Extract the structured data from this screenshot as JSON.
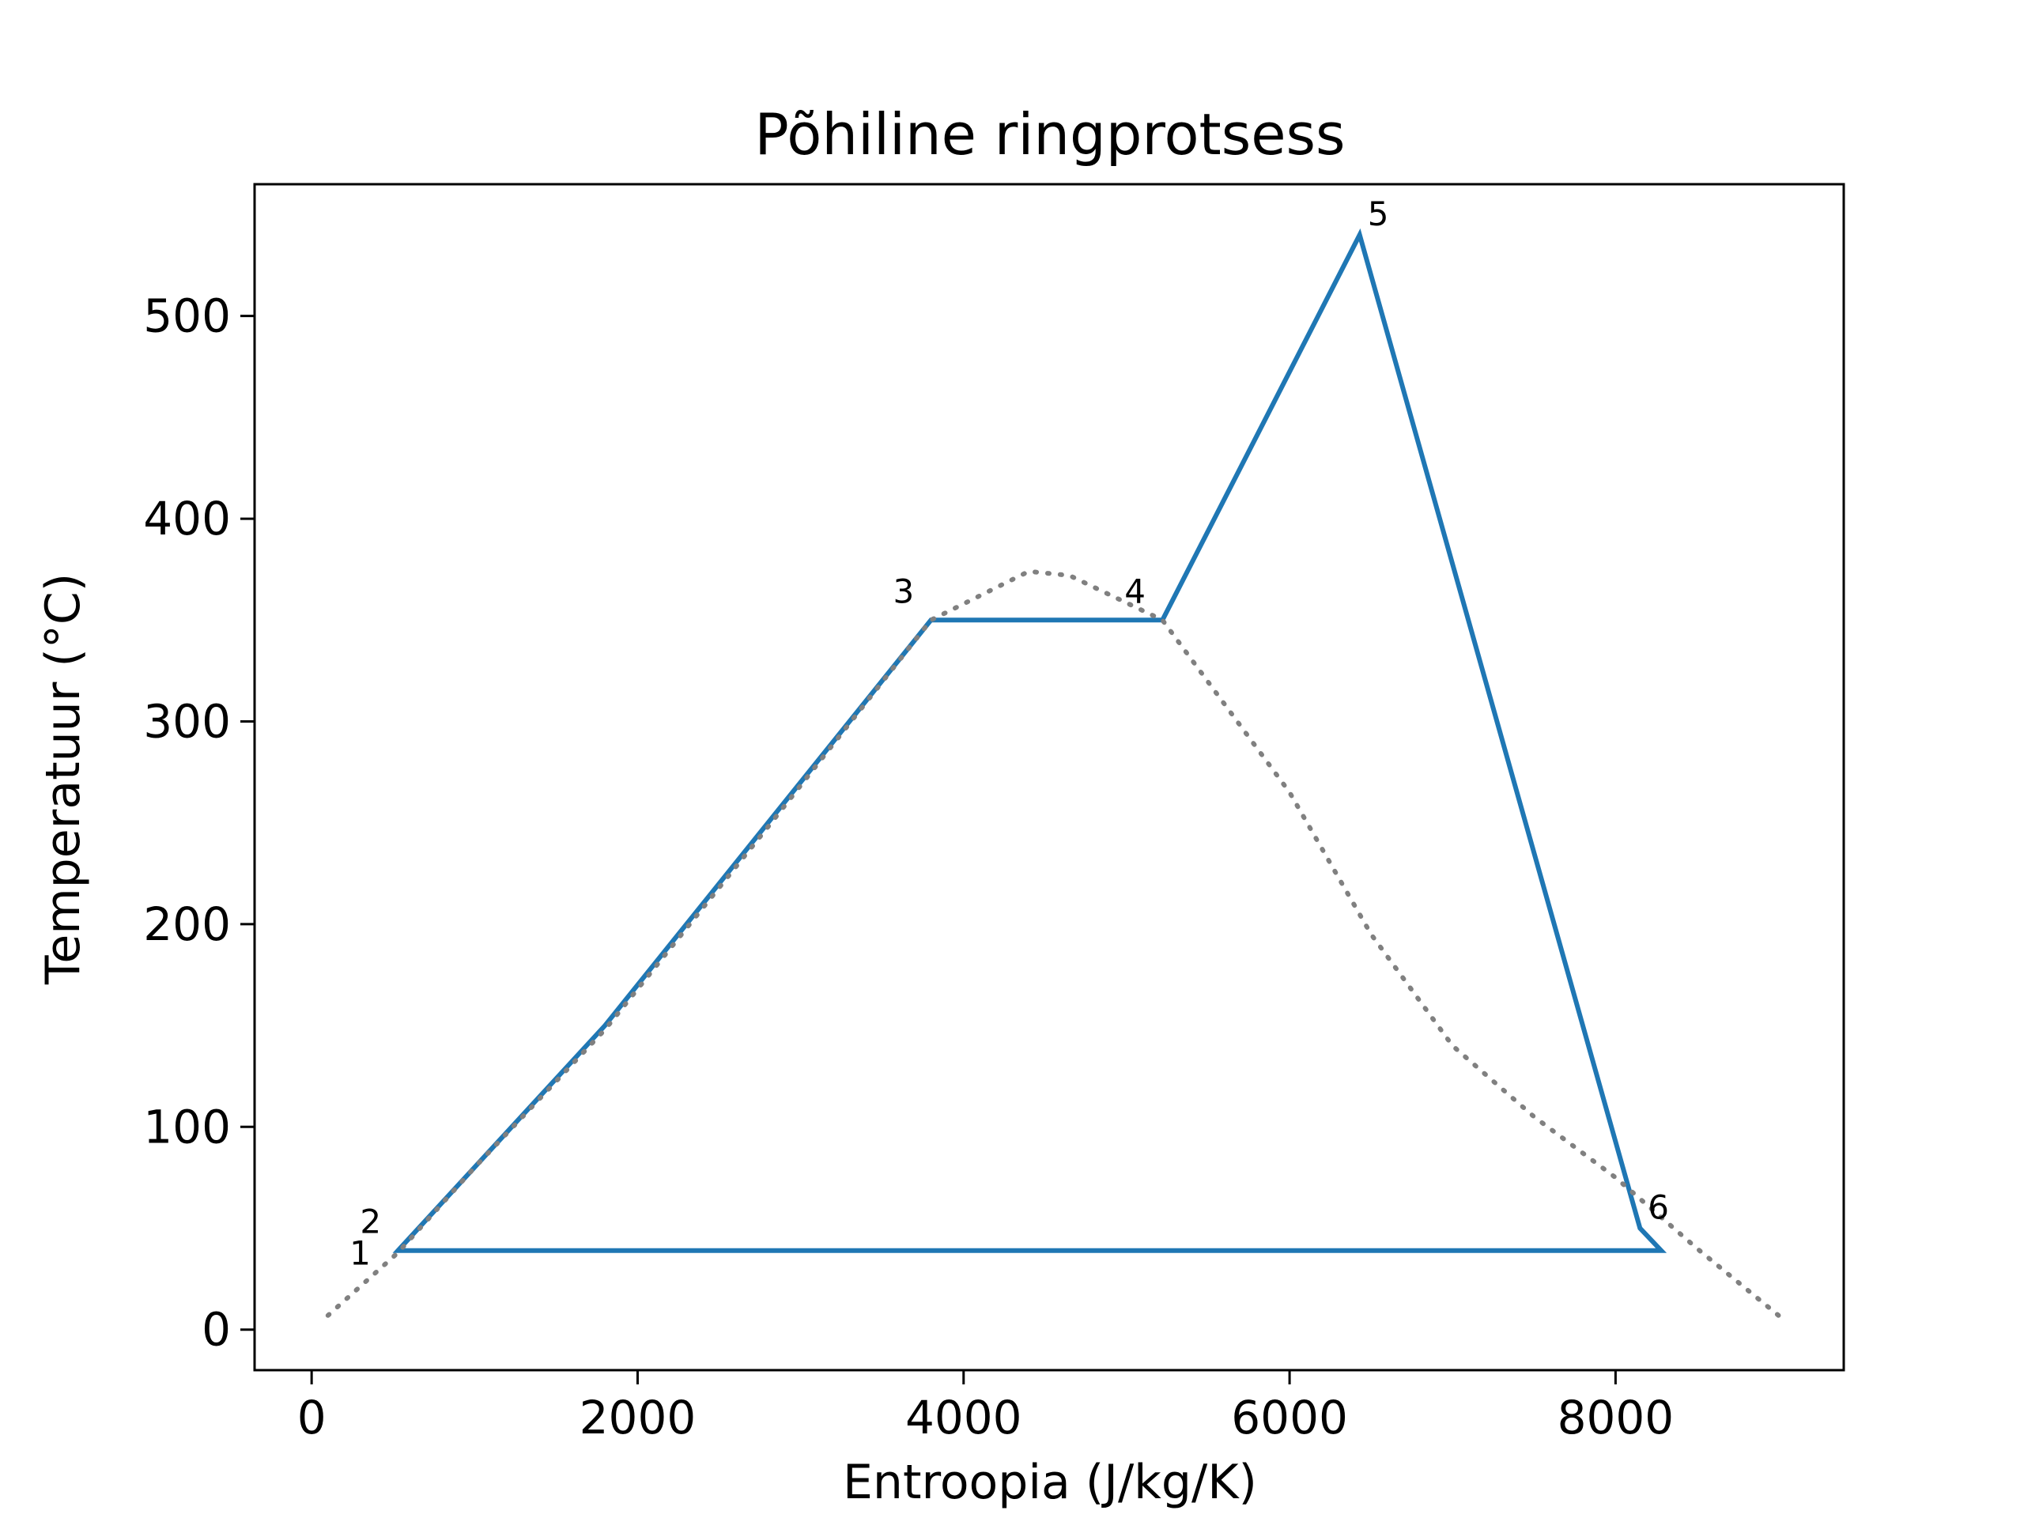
{
  "chart_data": {
    "type": "line",
    "title": "Põhiline ringprotsess",
    "xlabel": "Entroopia (J/kg/K)",
    "ylabel": "Temperatuur (°C)",
    "xlim": [
      -350,
      9400
    ],
    "ylim": [
      -20,
      565
    ],
    "xticks": [
      0,
      2000,
      4000,
      6000,
      8000
    ],
    "yticks": [
      0,
      100,
      200,
      300,
      400,
      500
    ],
    "grid": false,
    "series": [
      {
        "kind": "cycle",
        "color": "#1f77b4",
        "x": [
          572,
          530,
          1800,
          3800,
          5220,
          6430,
          8150,
          8280,
          572
        ],
        "y": [
          39,
          39,
          150,
          350,
          350,
          540,
          50,
          39,
          39
        ]
      },
      {
        "kind": "saturation-dome",
        "color": "#808080",
        "style": "dotted",
        "x": [
          100,
          530,
          1000,
          1800,
          2800,
          3800,
          4400,
          4650,
          5220,
          6000,
          6500,
          7000,
          7500,
          8000,
          8500,
          9000
        ],
        "y": [
          7,
          38,
          80,
          148,
          248,
          350,
          374,
          372,
          350,
          265,
          195,
          140,
          105,
          75,
          40,
          7
        ]
      }
    ],
    "annotations": [
      {
        "text": "1",
        "x": 572,
        "y": 39,
        "anchor": "left"
      },
      {
        "text": "2",
        "x": 530,
        "y": 39,
        "anchor": "upper-left"
      },
      {
        "text": "3",
        "x": 3800,
        "y": 350,
        "anchor": "upper-left"
      },
      {
        "text": "4",
        "x": 5220,
        "y": 350,
        "anchor": "upper-left"
      },
      {
        "text": "5",
        "x": 6430,
        "y": 540,
        "anchor": "upper-right"
      },
      {
        "text": "6",
        "x": 8150,
        "y": 50,
        "anchor": "upper-right"
      }
    ]
  }
}
